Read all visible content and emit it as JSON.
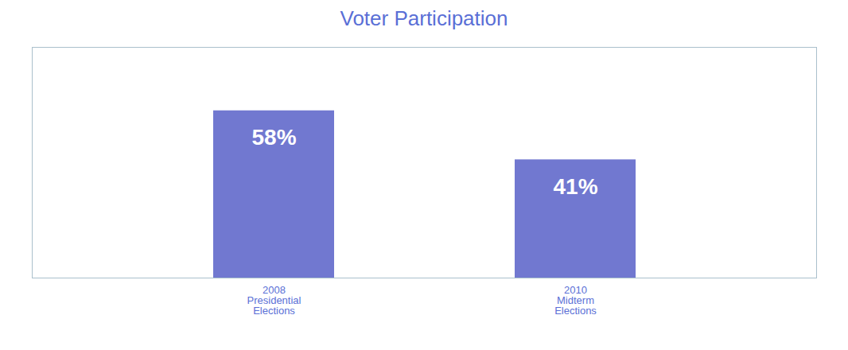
{
  "chart_data": {
    "type": "bar",
    "title": "Voter Participation",
    "categories": [
      "2008\nPresidential\nElections",
      "2010\nMidterm\nElections"
    ],
    "values": [
      58,
      41
    ],
    "value_labels": [
      "58%",
      "41%"
    ],
    "data_labels": true,
    "color": "#7178d0",
    "ylim": [
      0,
      80
    ],
    "tick_labels": "x",
    "grid": false
  }
}
